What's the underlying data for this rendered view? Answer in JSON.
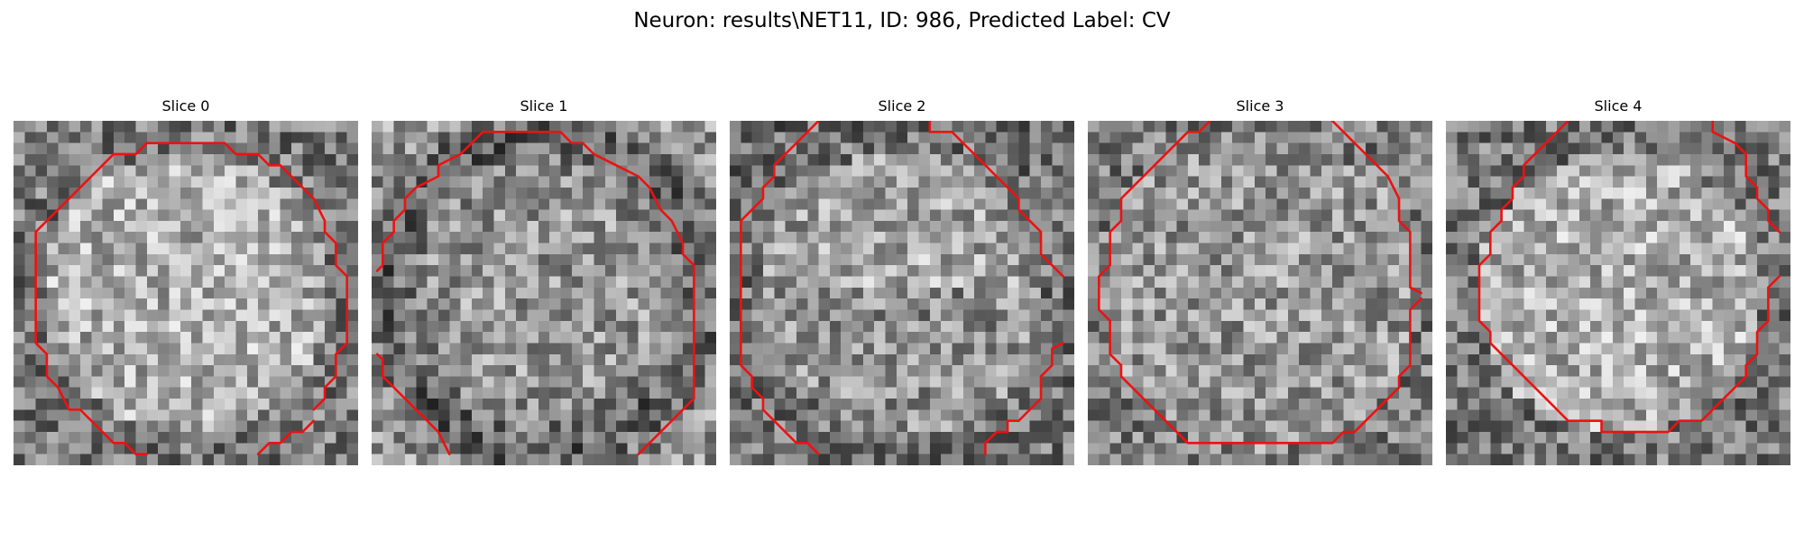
{
  "figure": {
    "title": "Neuron: results\\NET11, ID: 986, Predicted Label: CV"
  },
  "panels": [
    {
      "title": "Slice 0",
      "image_grid": 31,
      "brightness": "center-bright",
      "contour_color": "#ee1111",
      "contours": [
        [
          [
            12,
            2
          ],
          [
            19,
            2
          ],
          [
            20,
            3
          ],
          [
            22,
            3
          ],
          [
            23,
            4
          ],
          [
            24,
            4
          ],
          [
            26,
            6
          ],
          [
            27,
            7
          ],
          [
            28,
            9
          ],
          [
            28,
            10
          ],
          [
            29,
            11
          ],
          [
            29,
            13
          ],
          [
            30,
            14
          ],
          [
            30,
            20
          ],
          [
            29,
            21
          ],
          [
            29,
            23
          ],
          [
            28,
            24
          ],
          [
            28,
            25
          ],
          [
            27,
            26
          ]
        ],
        [
          [
            22,
            30
          ],
          [
            23,
            29
          ],
          [
            24,
            29
          ],
          [
            25,
            28
          ],
          [
            26,
            28
          ],
          [
            27,
            27
          ]
        ],
        [
          [
            12,
            30
          ],
          [
            11,
            30
          ],
          [
            10,
            29
          ],
          [
            9,
            29
          ],
          [
            8,
            28
          ],
          [
            7,
            27
          ],
          [
            6,
            26
          ],
          [
            5,
            26
          ],
          [
            4,
            24
          ],
          [
            3,
            23
          ],
          [
            3,
            21
          ],
          [
            2,
            20
          ],
          [
            2,
            10
          ],
          [
            6,
            6
          ],
          [
            7,
            5
          ],
          [
            8,
            4
          ],
          [
            9,
            3
          ],
          [
            11,
            3
          ],
          [
            12,
            2
          ]
        ]
      ]
    },
    {
      "title": "Slice 1",
      "image_grid": 31,
      "brightness": "ring-dark",
      "contour_color": "#ee1111",
      "contours": [
        [
          [
            0.5,
            13.5
          ],
          [
            1,
            13
          ],
          [
            1,
            11
          ],
          [
            2,
            10
          ],
          [
            2,
            9
          ],
          [
            3,
            8
          ],
          [
            3,
            7
          ],
          [
            4,
            6
          ],
          [
            6,
            5
          ],
          [
            6,
            4
          ],
          [
            8,
            3
          ],
          [
            9,
            2
          ],
          [
            10,
            1
          ],
          [
            17,
            1
          ],
          [
            18,
            2
          ],
          [
            19,
            2
          ],
          [
            20,
            3
          ],
          [
            22,
            4
          ],
          [
            24,
            5
          ],
          [
            25,
            6
          ],
          [
            26,
            8
          ],
          [
            27,
            9
          ],
          [
            28,
            11
          ],
          [
            28,
            12
          ],
          [
            29,
            13
          ],
          [
            29,
            25
          ],
          [
            28,
            26
          ],
          [
            27,
            27
          ],
          [
            26,
            28
          ],
          [
            25,
            29
          ],
          [
            24,
            30
          ]
        ],
        [
          [
            0.5,
            21
          ],
          [
            1,
            21.5
          ],
          [
            1,
            23
          ],
          [
            2,
            24
          ],
          [
            3,
            25
          ],
          [
            4,
            26
          ],
          [
            5,
            27
          ],
          [
            6,
            28
          ],
          [
            7,
            30
          ]
        ]
      ]
    },
    {
      "title": "Slice 2",
      "image_grid": 31,
      "brightness": "upper-bright",
      "contour_color": "#ee1111",
      "contours": [
        [
          [
            8,
            0
          ],
          [
            7,
            1
          ],
          [
            6,
            2
          ],
          [
            5,
            3
          ],
          [
            4,
            4
          ],
          [
            4,
            5
          ],
          [
            3,
            6
          ],
          [
            3,
            7
          ],
          [
            2,
            8
          ],
          [
            1,
            9
          ],
          [
            1,
            22
          ],
          [
            2,
            23
          ],
          [
            2,
            24
          ],
          [
            3,
            25
          ],
          [
            3,
            26
          ],
          [
            4,
            27
          ],
          [
            5,
            28
          ],
          [
            6,
            29
          ],
          [
            7,
            29
          ],
          [
            8,
            30
          ]
        ],
        [
          [
            18,
            0
          ],
          [
            18,
            1
          ],
          [
            20,
            1
          ],
          [
            21,
            2
          ],
          [
            22,
            3
          ],
          [
            23,
            4
          ],
          [
            24,
            5
          ],
          [
            25,
            6
          ],
          [
            26,
            7
          ],
          [
            26,
            8
          ],
          [
            27,
            9
          ],
          [
            28,
            10
          ],
          [
            28,
            12
          ],
          [
            29,
            13
          ],
          [
            30,
            14
          ]
        ],
        [
          [
            30,
            20
          ],
          [
            29,
            20.5
          ],
          [
            29,
            22
          ],
          [
            28,
            23
          ],
          [
            28,
            25
          ],
          [
            27,
            26
          ],
          [
            26,
            27
          ],
          [
            25,
            27
          ],
          [
            25,
            28
          ],
          [
            24,
            28
          ],
          [
            23,
            29
          ],
          [
            23,
            30
          ]
        ]
      ]
    },
    {
      "title": "Slice 3",
      "image_grid": 31,
      "brightness": "uniform",
      "contour_color": "#ee1111",
      "contours": [
        [
          [
            11,
            0
          ],
          [
            10,
            1
          ],
          [
            9,
            1
          ],
          [
            8,
            2
          ],
          [
            7,
            3
          ],
          [
            6,
            4
          ],
          [
            5,
            5
          ],
          [
            4,
            6
          ],
          [
            3,
            7
          ],
          [
            3,
            9
          ],
          [
            2,
            10
          ],
          [
            2,
            13
          ],
          [
            1,
            14
          ],
          [
            1,
            17
          ],
          [
            2,
            18
          ],
          [
            2,
            21
          ],
          [
            3,
            22
          ],
          [
            3,
            23
          ],
          [
            4,
            24
          ],
          [
            5,
            25
          ],
          [
            6,
            26
          ],
          [
            7,
            27
          ],
          [
            8,
            28
          ],
          [
            9,
            29
          ],
          [
            22,
            29
          ],
          [
            23,
            28
          ],
          [
            24,
            28
          ],
          [
            25,
            27
          ],
          [
            26,
            26
          ],
          [
            27,
            25
          ],
          [
            28,
            24
          ],
          [
            28,
            23
          ],
          [
            29,
            22
          ],
          [
            29,
            17
          ],
          [
            30,
            16
          ]
        ],
        [
          [
            22,
            0
          ],
          [
            23,
            1
          ],
          [
            24,
            2
          ],
          [
            25,
            3
          ],
          [
            26,
            4
          ],
          [
            27,
            5
          ],
          [
            28,
            7
          ],
          [
            28,
            9
          ],
          [
            29,
            10
          ],
          [
            29,
            15
          ],
          [
            30,
            15.5
          ]
        ]
      ]
    },
    {
      "title": "Slice 4",
      "image_grid": 31,
      "brightness": "center-bright",
      "contour_color": "#ee1111",
      "contours": [
        [
          [
            11,
            0
          ],
          [
            10,
            1
          ],
          [
            9,
            2
          ],
          [
            8,
            3
          ],
          [
            7,
            4
          ],
          [
            7,
            5
          ],
          [
            6,
            6
          ],
          [
            6,
            7
          ],
          [
            5,
            8
          ],
          [
            5,
            9
          ],
          [
            4,
            10
          ],
          [
            4,
            12
          ],
          [
            3,
            13
          ],
          [
            3,
            18
          ],
          [
            4,
            19
          ],
          [
            4,
            20
          ],
          [
            5,
            21
          ],
          [
            6,
            22
          ],
          [
            7,
            23
          ],
          [
            8,
            24
          ],
          [
            9,
            25
          ],
          [
            10,
            26
          ],
          [
            11,
            27
          ],
          [
            14,
            27
          ],
          [
            14,
            28
          ],
          [
            20,
            28
          ],
          [
            21,
            27
          ],
          [
            23,
            27
          ],
          [
            24,
            26
          ],
          [
            25,
            25
          ],
          [
            26,
            24
          ],
          [
            27,
            23
          ],
          [
            27,
            22
          ],
          [
            28,
            21
          ],
          [
            28,
            19
          ],
          [
            29,
            18
          ],
          [
            29,
            15
          ],
          [
            30,
            14
          ]
        ],
        [
          [
            24,
            0
          ],
          [
            24,
            1
          ],
          [
            26,
            2
          ],
          [
            27,
            3
          ],
          [
            27,
            5
          ],
          [
            28,
            6
          ],
          [
            28,
            7
          ],
          [
            29,
            8
          ],
          [
            29,
            9
          ],
          [
            30,
            10
          ]
        ]
      ]
    }
  ]
}
